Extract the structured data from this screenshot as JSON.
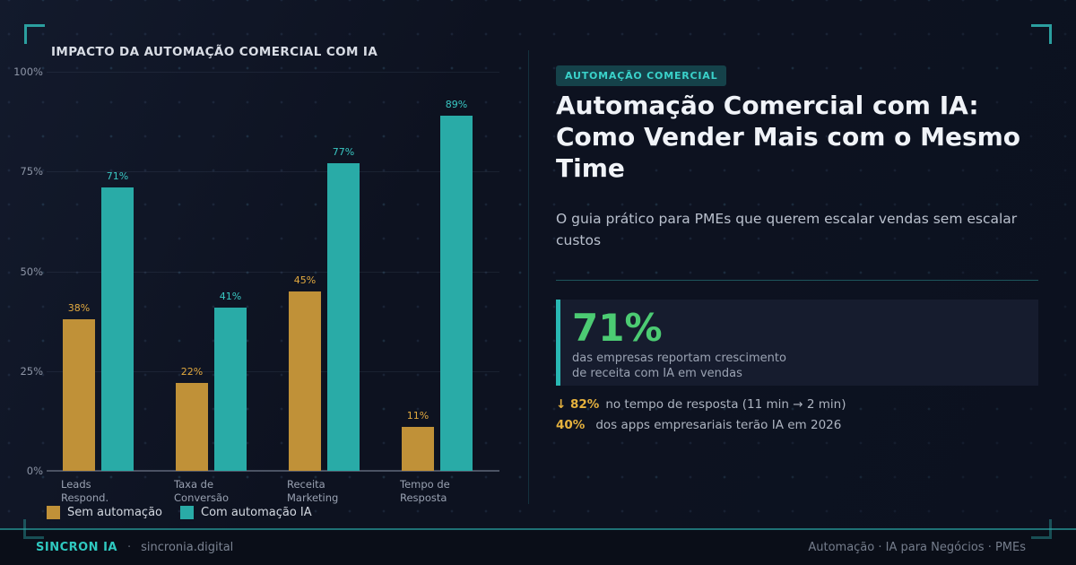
{
  "chart_data": {
    "type": "bar",
    "title": "IMPACTO DA AUTOMAÇÃO COMERCIAL COM IA",
    "categories": [
      {
        "line1": "Leads",
        "line2": "Respond."
      },
      {
        "line1": "Taxa de",
        "line2": "Conversão"
      },
      {
        "line1": "Receita",
        "line2": "Marketing"
      },
      {
        "line1": "Tempo de",
        "line2": "Resposta"
      }
    ],
    "series": [
      {
        "name": "Sem automação",
        "color": "#c09138",
        "label_color": "#e2a93f",
        "values": [
          38,
          22,
          45,
          11
        ]
      },
      {
        "name": "Com automação IA",
        "color": "#29aba7",
        "label_color": "#39c8c3",
        "values": [
          71,
          41,
          77,
          89
        ]
      }
    ],
    "y_ticks": [
      "0%",
      "25%",
      "50%",
      "75%",
      "100%"
    ],
    "ylim": [
      0,
      100
    ],
    "value_suffix": "%",
    "grid": true,
    "legend_position": "bottom"
  },
  "panel": {
    "badge": "AUTOMAÇÃO COMERCIAL",
    "title": "Automação Comercial com IA: Como Vender Mais com o Mesmo Time",
    "subtitle": "O guia prático para PMEs que querem escalar vendas sem escalar custos",
    "highlight": {
      "value": "71%",
      "line1": "das empresas reportam crescimento",
      "line2": "de receita com IA em vendas"
    },
    "stats": [
      {
        "prefix": "↓ 82%",
        "text": "no tempo de resposta (11 min → 2 min)"
      },
      {
        "prefix": "40%",
        "text": "dos apps empresariais terão IA em 2026"
      }
    ]
  },
  "footer": {
    "brand": "SINCRON IA",
    "separator": "·",
    "domain": "sincronia.digital",
    "tags": "Automação · IA para Negócios · PMEs"
  },
  "colors": {
    "background": "#0d1220",
    "accent_teal": "#29aba7",
    "accent_teal_bright": "#3ad2ca",
    "accent_gold": "#c09138",
    "green_highlight": "#4ccb73",
    "badge_bg": "#15424a",
    "highlight_box_bg": "#161c2e",
    "footer_border": "#1f7175",
    "title_text": "#f0f3f8",
    "muted_text": "#99a1b1"
  }
}
